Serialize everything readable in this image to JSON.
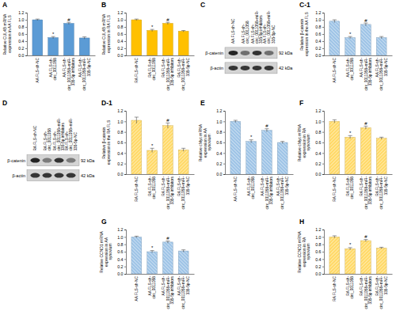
{
  "chart_data": [
    {
      "type": "bar",
      "title": "A",
      "y_label": "Relative CUL4B mRNA expression in AA FLS",
      "categories": [
        "AA FLS-sh-NC",
        "AA FLS-sh-circ_0011058",
        "AA FLS-sh-circ_0011058+miR-335-5p inhibitors",
        "AA FLS-sh-circ_0011058+miR-335-5p-NC"
      ],
      "values": [
        1.0,
        0.5,
        0.9,
        0.49
      ],
      "errors": [
        0.02,
        0.03,
        0.03,
        0.03
      ],
      "annotations": [
        null,
        "*",
        "#",
        null
      ],
      "color": "#5b9bd5",
      "ylim": [
        0,
        1.2
      ],
      "yticks": [
        {
          "value": 0,
          "label": "0.0"
        },
        {
          "value": 0.2,
          "label": "0.2"
        },
        {
          "value": 0.4,
          "label": "0.4"
        },
        {
          "value": 0.6,
          "label": "0.6"
        },
        {
          "value": 0.8,
          "label": "0.8"
        },
        {
          "value": 1,
          "label": "1.0"
        },
        {
          "value": 1.2,
          "label": "1.2"
        }
      ]
    },
    {
      "type": "bar",
      "title": "B",
      "y_label": "Relative CUL4B mRNA expression in RA FLS",
      "categories": [
        "RA FLS-sh-NC",
        "RA FLS-sh-circ_0011058",
        "RA FLS-sh-circ_0011058+miR-335-5p inhibitors",
        "RA FLS-sh-circ_0011058+miR-335-5p-NC"
      ],
      "values": [
        1.0,
        0.7,
        0.9,
        0.68
      ],
      "errors": [
        0.02,
        0.03,
        0.03,
        0.02
      ],
      "annotations": [
        null,
        "*",
        "#",
        null
      ],
      "color": "#ffc000",
      "ylim": [
        0,
        1.2
      ],
      "yticks": [
        {
          "value": 0,
          "label": "0.0"
        },
        {
          "value": 0.2,
          "label": "0.2"
        },
        {
          "value": 0.4,
          "label": "0.4"
        },
        {
          "value": 0.6,
          "label": "0.6"
        },
        {
          "value": 0.8,
          "label": "0.8"
        },
        {
          "value": 1,
          "label": "1.0"
        },
        {
          "value": 1.2,
          "label": "1.2"
        }
      ]
    },
    {
      "type": "bar",
      "title": "C-1",
      "y_label": "Relative β-catenin expression in the AA FLS",
      "categories": [
        "AA FLS-sh-NC",
        "AA FLS-sh-circ_0011058",
        "AA FLS-sh-circ_0011058+miR-335-5p inhibitors",
        "AA FLS-sh-circ_0011058+miR-335-5p-NC"
      ],
      "values": [
        0.96,
        0.5,
        0.87,
        0.5
      ],
      "errors": [
        0.04,
        0.03,
        0.04,
        0.03
      ],
      "annotations": [
        null,
        "*",
        "#",
        null
      ],
      "color": "#9dc3e6",
      "ylim": [
        0,
        1.2
      ],
      "yticks": [
        {
          "value": 0,
          "label": "0.0"
        },
        {
          "value": 0.2,
          "label": "0.2"
        },
        {
          "value": 0.4,
          "label": "0.4"
        },
        {
          "value": 0.6,
          "label": "0.6"
        },
        {
          "value": 0.8,
          "label": "0.8"
        },
        {
          "value": 1,
          "label": "1.0"
        },
        {
          "value": 1.2,
          "label": "1.2"
        }
      ]
    },
    {
      "type": "bar",
      "title": "D-1",
      "y_label": "Relative β-catenin expression in the RA FLS",
      "categories": [
        "RA FLS-sh-NC",
        "RA FLS-sh-circ_0011058",
        "RA FLS-sh-circ_0011058+miR-335-5p inhibitors",
        "RA FLS-sh-circ_0011058+miR-335-5p-NC"
      ],
      "values": [
        1.02,
        0.45,
        0.92,
        0.46
      ],
      "errors": [
        0.06,
        0.04,
        0.05,
        0.03
      ],
      "annotations": [
        null,
        "*",
        "#",
        null
      ],
      "color": "#ffd966",
      "ylim": [
        0,
        1.2
      ],
      "yticks": [
        {
          "value": 0,
          "label": "0.0"
        },
        {
          "value": 0.2,
          "label": "0.2"
        },
        {
          "value": 0.4,
          "label": "0.4"
        },
        {
          "value": 0.6,
          "label": "0.6"
        },
        {
          "value": 0.8,
          "label": "0.8"
        },
        {
          "value": 1,
          "label": "1.0"
        },
        {
          "value": 1.2,
          "label": "1.2"
        }
      ]
    },
    {
      "type": "bar",
      "title": "E",
      "y_label": "Relative cMyc mRNA expression in AA synovium",
      "categories": [
        "AA FLS-sh-NC",
        "AA FLS-sh-circ_0011058",
        "AA FLS-sh-circ_0011058+miR-335-5p inhibitors",
        "AA FLS-sh-circ_0011058+miR-335-5p-NC"
      ],
      "values": [
        1.0,
        0.62,
        0.83,
        0.6
      ],
      "errors": [
        0.02,
        0.03,
        0.03,
        0.02
      ],
      "annotations": [
        null,
        "*",
        "#",
        null
      ],
      "color": "#9dc3e6",
      "ylim": [
        0,
        1.2
      ],
      "yticks": [
        {
          "value": 0,
          "label": "0.0"
        },
        {
          "value": 0.2,
          "label": "0.2"
        },
        {
          "value": 0.4,
          "label": "0.4"
        },
        {
          "value": 0.6,
          "label": "0.6"
        },
        {
          "value": 0.8,
          "label": "0.8"
        },
        {
          "value": 1,
          "label": "1.0"
        },
        {
          "value": 1.2,
          "label": "1.2"
        }
      ]
    },
    {
      "type": "bar",
      "title": "F",
      "y_label": "Relative cMyc mRNA expression in RA synovium",
      "categories": [
        "RA FLS-sh-NC",
        "RA FLS-sh-circ_0011058",
        "RA FLS-sh-circ_0011058+miR-335-5p inhibitors",
        "RA FLS-sh-circ_0011058+miR-335-5p-NC"
      ],
      "values": [
        1.0,
        0.7,
        0.88,
        0.68
      ],
      "errors": [
        0.03,
        0.03,
        0.03,
        0.02
      ],
      "annotations": [
        null,
        "*",
        "#",
        null
      ],
      "color": "#ffd966",
      "ylim": [
        0,
        1.2
      ],
      "yticks": [
        {
          "value": 0,
          "label": "0.0"
        },
        {
          "value": 0.2,
          "label": "0.2"
        },
        {
          "value": 0.4,
          "label": "0.4"
        },
        {
          "value": 0.6,
          "label": "0.6"
        },
        {
          "value": 0.8,
          "label": "0.8"
        },
        {
          "value": 1,
          "label": "1.0"
        },
        {
          "value": 1.2,
          "label": "1.2"
        }
      ]
    },
    {
      "type": "bar",
      "title": "G",
      "y_label": "Relative CCND1 mRNA expression in AA synovium",
      "categories": [
        "AA FLS-sh-NC",
        "AA FLS-sh-circ_0011058",
        "AA FLS-sh-circ_0011058+miR-335-5p inhibitors",
        "AA FLS-sh-circ_0011058+miR-335-5p-NC"
      ],
      "values": [
        1.0,
        0.6,
        0.86,
        0.62
      ],
      "errors": [
        0.02,
        0.03,
        0.03,
        0.03
      ],
      "annotations": [
        null,
        "*",
        "#",
        null
      ],
      "color": "#9dc3e6",
      "ylim": [
        0,
        1.2
      ],
      "yticks": [
        {
          "value": 0,
          "label": "0.0"
        },
        {
          "value": 0.2,
          "label": "0.2"
        },
        {
          "value": 0.4,
          "label": "0.4"
        },
        {
          "value": 0.6,
          "label": "0.6"
        },
        {
          "value": 0.8,
          "label": "0.8"
        },
        {
          "value": 1,
          "label": "1.0"
        },
        {
          "value": 1.2,
          "label": "1.2"
        }
      ]
    },
    {
      "type": "bar",
      "title": "H",
      "y_label": "Relative CCND1 mRNA expression in RA synovium",
      "categories": [
        "RA FLS-sh-NC",
        "RA FLS-sh-circ_0011058",
        "RA FLS-sh-circ_0011058+miR-335-5p inhibitors",
        "RA FLS-sh-circ_0011058+miR-335-5p-NC"
      ],
      "values": [
        1.0,
        0.68,
        0.9,
        0.7
      ],
      "errors": [
        0.03,
        0.03,
        0.03,
        0.02
      ],
      "annotations": [
        null,
        "*",
        "#",
        null
      ],
      "color": "#ffd966",
      "ylim": [
        0,
        1.2
      ],
      "yticks": [
        {
          "value": 0,
          "label": "0.0"
        },
        {
          "value": 0.2,
          "label": "0.2"
        },
        {
          "value": 0.4,
          "label": "0.4"
        },
        {
          "value": 0.6,
          "label": "0.6"
        },
        {
          "value": 0.8,
          "label": "0.8"
        },
        {
          "value": 1,
          "label": "1.0"
        },
        {
          "value": 1.2,
          "label": "1.2"
        }
      ]
    }
  ],
  "blots": [
    {
      "label": "C",
      "lanes": [
        "AA FLS-sh-NC",
        "AA FLS-sh-circ_0011058",
        "AA FLS-sh-circ_0011058+miR-335-5p inhibitors",
        "AA FLS-sh-circ_0011058+miR-335-5p-NC"
      ],
      "bands": [
        {
          "name": "β-catenin",
          "size": "92 kDa"
        },
        {
          "name": "β-actin",
          "size": "42 kDa"
        }
      ]
    },
    {
      "label": "D",
      "lanes": [
        "RA FLS-sh-NC",
        "RA FLS-sh-circ_0011058",
        "RA FLS-sh-circ_0011058+miR-335-5p inhibitors",
        "RA FLS-sh-circ_0011058+miR-335-5p-NC"
      ],
      "bands": [
        {
          "name": "β-catenin",
          "size": "92 kDa"
        },
        {
          "name": "β-actin",
          "size": "42 kDa"
        }
      ]
    }
  ]
}
